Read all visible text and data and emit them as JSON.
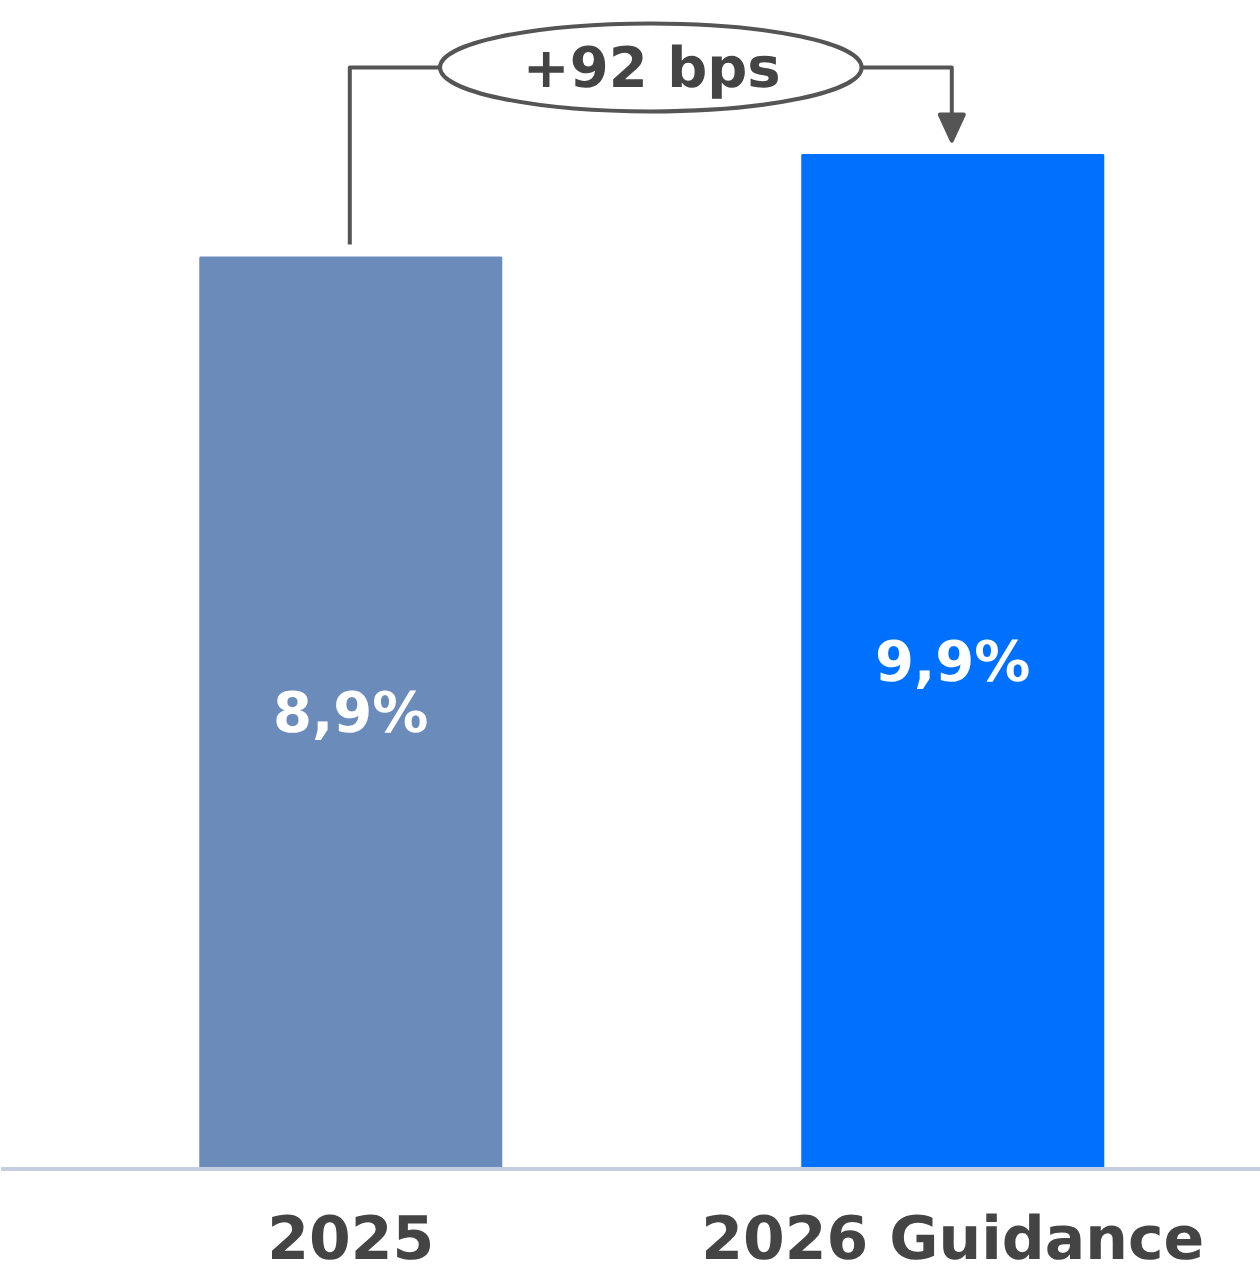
{
  "chart_data": {
    "type": "bar",
    "categories": [
      "2025",
      "2026 Guidance"
    ],
    "values": [
      8.9,
      9.9
    ],
    "colors": [
      "#6b8cba",
      "#0070ff"
    ],
    "value_labels": [
      "8,9%",
      "9,9%"
    ],
    "tick_labels": "x",
    "grid": false,
    "annotations": [
      "+92 bps"
    ]
  }
}
